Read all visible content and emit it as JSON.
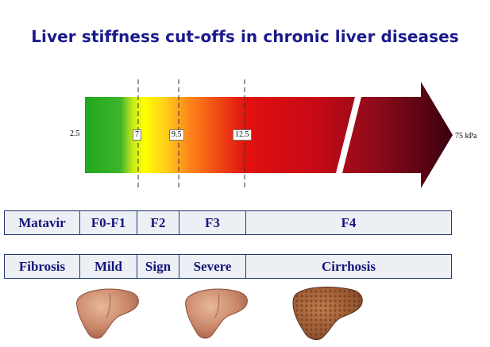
{
  "title": "Liver stiffness cut-offs in chronic liver diseases",
  "scale": {
    "min_label": "2.5",
    "max_label": "75 kPa",
    "ticks": [
      "7",
      "9.5",
      "12.5"
    ]
  },
  "colors": {
    "title": "#1a1a8c",
    "table_text": "#14147a",
    "green": "#1fa81f",
    "yellow": "#ffff00",
    "orange": "#ff9a1a",
    "red": "#dd1010",
    "dark_red": "#4a0010"
  },
  "table": {
    "matavir_row": [
      "Matavir",
      "F0-F1",
      "F2",
      "F3",
      "F4"
    ],
    "fibrosis_row": [
      "Fibrosis",
      "Mild",
      "Sign",
      "Severe",
      "Cirrhosis"
    ]
  },
  "images": {
    "livers": [
      "healthy-liver",
      "healthy-liver",
      "cirrhotic-liver"
    ]
  }
}
